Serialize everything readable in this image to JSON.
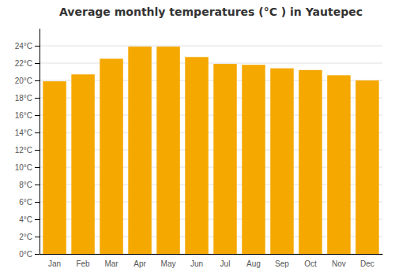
{
  "chart_data": {
    "type": "bar",
    "title": "Average monthly temperatures (°C ) in Yautepec",
    "categories": [
      "Jan",
      "Feb",
      "Mar",
      "Apr",
      "May",
      "Jun",
      "Jul",
      "Aug",
      "Sep",
      "Oct",
      "Nov",
      "Dec"
    ],
    "values": [
      19.9,
      20.7,
      22.5,
      23.9,
      23.9,
      22.7,
      21.9,
      21.8,
      21.4,
      21.2,
      20.6,
      20.0
    ],
    "color": "#F5A800",
    "ylim": [
      0,
      26
    ],
    "yticks": [
      {
        "value": 0,
        "label": "0°C"
      },
      {
        "value": 2,
        "label": "2°C"
      },
      {
        "value": 4,
        "label": "4°C"
      },
      {
        "value": 6,
        "label": "6°C"
      },
      {
        "value": 8,
        "label": "8°C"
      },
      {
        "value": 10,
        "label": "10°C"
      },
      {
        "value": 12,
        "label": "12°C"
      },
      {
        "value": 14,
        "label": "14°C"
      },
      {
        "value": 16,
        "label": "16°C"
      },
      {
        "value": 18,
        "label": "18°C"
      },
      {
        "value": 20,
        "label": "20°C"
      },
      {
        "value": 22,
        "label": "22°C"
      },
      {
        "value": 24,
        "label": "24°C"
      }
    ],
    "grid": true
  }
}
